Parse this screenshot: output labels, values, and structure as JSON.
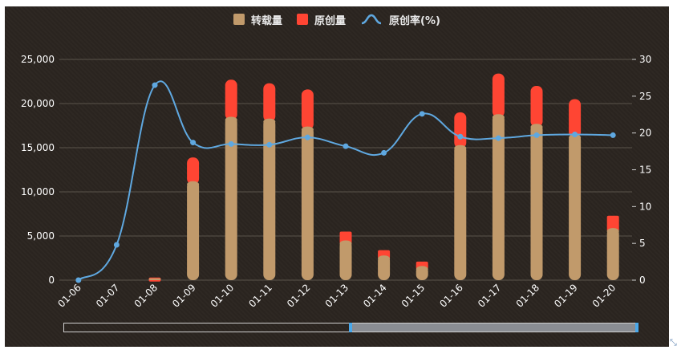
{
  "legend": {
    "items": [
      {
        "label": "转载量",
        "color": "#c19a6b",
        "kind": "bar"
      },
      {
        "label": "原创量",
        "color": "#ff4533",
        "kind": "bar"
      },
      {
        "label": "原创率(%)",
        "color": "#5fa8e0",
        "kind": "line"
      }
    ]
  },
  "colors": {
    "reprint": "#c19a6b",
    "original": "#ff4533",
    "rate": "#5fa8e0",
    "axis_text": "#ffffff",
    "grid": "#5a534b"
  },
  "chart_data": {
    "type": "bar",
    "categories": [
      "01-06",
      "01-07",
      "01-08",
      "01-09",
      "01-10",
      "01-11",
      "01-12",
      "01-13",
      "01-14",
      "01-15",
      "01-16",
      "01-17",
      "01-18",
      "01-19",
      "01-20"
    ],
    "series": [
      {
        "name": "转载量",
        "type": "bar",
        "stack": "total",
        "axis": "left",
        "values": [
          0,
          0,
          200,
          11200,
          18500,
          18300,
          17400,
          4500,
          2800,
          1600,
          15300,
          18800,
          17700,
          16500,
          5900
        ]
      },
      {
        "name": "原创量",
        "type": "bar",
        "stack": "total",
        "axis": "left",
        "values": [
          0,
          0,
          100,
          2700,
          4200,
          4000,
          4200,
          1000,
          600,
          500,
          3700,
          4600,
          4300,
          4000,
          1400
        ]
      },
      {
        "name": "原创率(%)",
        "type": "line",
        "axis": "right",
        "values": [
          0,
          4.8,
          26.5,
          18.7,
          18.5,
          18.4,
          19.4,
          18.2,
          17.3,
          22.6,
          19.5,
          19.3,
          19.7,
          19.8,
          19.7
        ]
      }
    ],
    "y_left": {
      "min": 0,
      "max": 25000,
      "ticks": [
        0,
        5000,
        10000,
        15000,
        20000,
        25000
      ],
      "tick_labels": [
        "0",
        "5,000",
        "10,000",
        "15,000",
        "20,000",
        "25,000"
      ]
    },
    "y_right": {
      "min": 0,
      "max": 30,
      "ticks": [
        0,
        5,
        10,
        15,
        20,
        25,
        30
      ],
      "tick_labels": [
        "0",
        "5",
        "10",
        "15",
        "20",
        "25",
        "30"
      ]
    },
    "grid": true,
    "legend_position": "top-center",
    "data_zoom": {
      "start": 0.5,
      "end": 1.0
    }
  }
}
